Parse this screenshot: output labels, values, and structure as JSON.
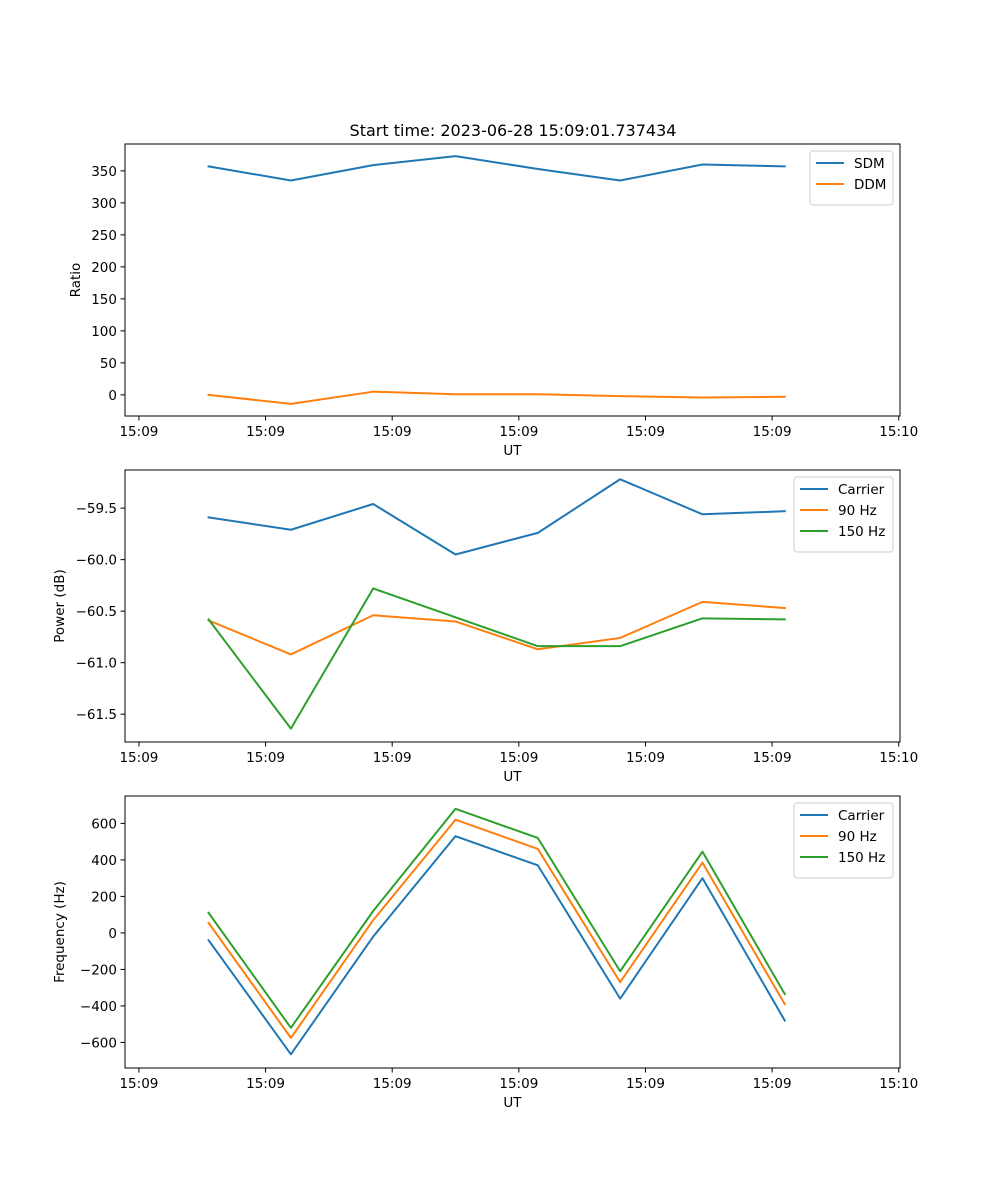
{
  "figure_title": "Start time: 2023-06-28 15:09:01.737434",
  "colors": {
    "blue": "#1f77b4",
    "orange": "#ff7f0e",
    "green": "#2ca02c"
  },
  "chart_data": [
    {
      "type": "line",
      "title": "Start time: 2023-06-28 15:09:01.737434",
      "xlabel": "UT",
      "ylabel": "Ratio",
      "x": [
        0.66,
        1.31,
        1.96,
        2.61,
        3.26,
        3.91,
        4.56,
        5.21
      ],
      "xlim": [
        0,
        6.12
      ],
      "xticks": [
        0.11,
        1.11,
        2.11,
        3.11,
        4.11,
        5.11,
        6.11
      ],
      "xticklabels": [
        "15:09",
        "15:09",
        "15:09",
        "15:09",
        "15:09",
        "15:09",
        "15:10"
      ],
      "ylim": [
        -33,
        392
      ],
      "yticks": [
        0,
        50,
        100,
        150,
        200,
        250,
        300,
        350
      ],
      "yticklabels": [
        "0",
        "50",
        "100",
        "150",
        "200",
        "250",
        "300",
        "350"
      ],
      "legend_position": "top-right",
      "grid": false,
      "series": [
        {
          "name": "SDM",
          "color": "#1f77b4",
          "values": [
            357,
            335,
            359,
            373,
            353,
            335,
            360,
            357
          ]
        },
        {
          "name": "DDM",
          "color": "#ff7f0e",
          "values": [
            0,
            -14,
            5,
            1,
            1,
            -2,
            -4,
            -3
          ]
        }
      ]
    },
    {
      "type": "line",
      "title": "",
      "xlabel": "UT",
      "ylabel": "Power (dB)",
      "x": [
        0.66,
        1.31,
        1.96,
        2.61,
        3.26,
        3.91,
        4.56,
        5.21
      ],
      "xlim": [
        0,
        6.12
      ],
      "xticks": [
        0.11,
        1.11,
        2.11,
        3.11,
        4.11,
        5.11,
        6.11
      ],
      "xticklabels": [
        "15:09",
        "15:09",
        "15:09",
        "15:09",
        "15:09",
        "15:09",
        "15:10"
      ],
      "ylim": [
        -61.77,
        -59.13
      ],
      "yticks": [
        -61.5,
        -61.0,
        -60.5,
        -60.0,
        -59.5
      ],
      "yticklabels": [
        "−61.5",
        "−61.0",
        "−60.5",
        "−60.0",
        "−59.5"
      ],
      "legend_position": "top-right",
      "grid": false,
      "series": [
        {
          "name": "Carrier",
          "color": "#1f77b4",
          "values": [
            -59.59,
            -59.71,
            -59.46,
            -59.95,
            -59.74,
            -59.22,
            -59.56,
            -59.53
          ]
        },
        {
          "name": "90 Hz",
          "color": "#ff7f0e",
          "values": [
            -60.59,
            -60.92,
            -60.54,
            -60.6,
            -60.87,
            -60.76,
            -60.41,
            -60.47
          ]
        },
        {
          "name": "150 Hz",
          "color": "#2ca02c",
          "values": [
            -60.58,
            -61.64,
            -60.28,
            -60.56,
            -60.84,
            -60.84,
            -60.57,
            -60.58
          ]
        }
      ]
    },
    {
      "type": "line",
      "title": "",
      "xlabel": "UT",
      "ylabel": "Frequency (Hz)",
      "x": [
        0.66,
        1.31,
        1.96,
        2.61,
        3.26,
        3.91,
        4.56,
        5.21
      ],
      "xlim": [
        0,
        6.12
      ],
      "xticks": [
        0.11,
        1.11,
        2.11,
        3.11,
        4.11,
        5.11,
        6.11
      ],
      "xticklabels": [
        "15:09",
        "15:09",
        "15:09",
        "15:09",
        "15:09",
        "15:09",
        "15:10"
      ],
      "ylim": [
        -740,
        750
      ],
      "yticks": [
        -600,
        -400,
        -200,
        0,
        200,
        400,
        600
      ],
      "yticklabels": [
        "−600",
        "−400",
        "−200",
        "0",
        "200",
        "400",
        "600"
      ],
      "legend_position": "top-right",
      "grid": false,
      "series": [
        {
          "name": "Carrier",
          "color": "#1f77b4",
          "values": [
            -40,
            -665,
            -20,
            530,
            370,
            -360,
            300,
            -480
          ]
        },
        {
          "name": "90 Hz",
          "color": "#ff7f0e",
          "values": [
            55,
            -575,
            70,
            620,
            460,
            -270,
            385,
            -390
          ]
        },
        {
          "name": "150 Hz",
          "color": "#2ca02c",
          "values": [
            110,
            -520,
            120,
            680,
            520,
            -210,
            445,
            -335
          ]
        }
      ]
    }
  ]
}
